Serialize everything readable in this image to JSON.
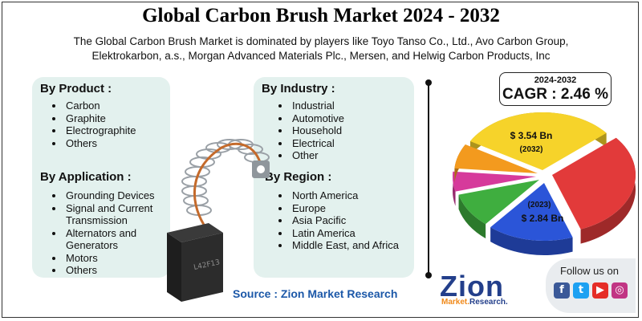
{
  "title": "Global Carbon Brush Market 2024 - 2032",
  "subtitle": "The Global Carbon Brush Market is dominated by players like Toyo Tanso Co., Ltd., Avo Carbon Group, Elektrokarbon, a.s., Morgan Advanced Materials Plc., Mersen, and Helwig Carbon Products, Inc",
  "by_product": {
    "title": "By Product :",
    "items": [
      "Carbon",
      "Graphite",
      "Electrographite",
      "Others"
    ]
  },
  "by_application": {
    "title": "By Application :",
    "items": [
      "Grounding Devices",
      "Signal and Current Transmission",
      "Alternators and Generators",
      "Motors",
      "Others"
    ]
  },
  "by_industry": {
    "title": "By Industry :",
    "items": [
      "Industrial",
      "Automotive",
      "Household",
      "Electrical",
      "Other"
    ]
  },
  "by_region": {
    "title": "By Region :",
    "items": [
      "North America",
      "Europe",
      "Asia Pacific",
      "Latin America",
      "Middle East, and Africa"
    ]
  },
  "cagr": {
    "period": "2024-2032",
    "value": "CAGR : 2.46 %"
  },
  "pie": {
    "value_2032": "$ 3.54 Bn",
    "year_2032": "(2032)",
    "year_2023": "(2023)",
    "value_2023": "$ 2.84 Bn",
    "colors": [
      "#f6d32a",
      "#e23a3a",
      "#2b55d8",
      "#3fae3f",
      "#d63a9b",
      "#f39a1e"
    ]
  },
  "source": "Source : Zion Market Research",
  "brand": {
    "name": "Zion",
    "sub_a": "Market.",
    "sub_b": "Research."
  },
  "follow": {
    "label": "Follow us on",
    "icons": [
      {
        "name": "facebook",
        "glyph": "f",
        "color": "#3b5998"
      },
      {
        "name": "twitter",
        "glyph": "t",
        "color": "#1da1f2"
      },
      {
        "name": "youtube",
        "glyph": "▶",
        "color": "#e52d27"
      },
      {
        "name": "instagram",
        "glyph": "◎",
        "color": "#c13584"
      }
    ]
  }
}
